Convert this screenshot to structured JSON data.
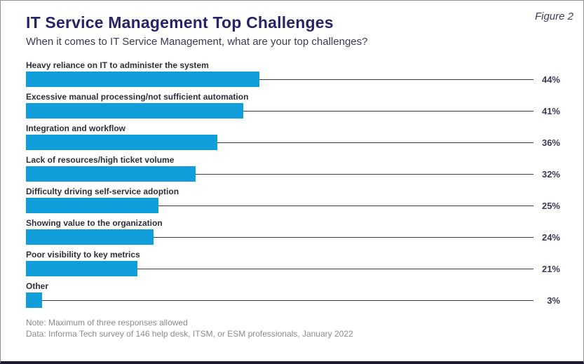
{
  "figure_label": "Figure 2",
  "chart_data": {
    "type": "bar",
    "orientation": "horizontal",
    "title": "IT Service Management Top Challenges",
    "subtitle": "When it comes to IT Service Management, what are your top challenges?",
    "categories": [
      "Heavy reliance on IT to administer the system",
      "Excessive manual processing/not sufficient automation",
      "Integration and workflow",
      "Lack of resources/high ticket volume",
      "Difficulty driving self-service adoption",
      "Showing value to the organization",
      "Poor visibility to key metrics",
      "Other"
    ],
    "values": [
      44,
      41,
      36,
      32,
      25,
      24,
      21,
      3
    ],
    "value_suffix": "%",
    "xlim": [
      0,
      44
    ],
    "grid": false,
    "legend": "none",
    "data_labels_position": "right-aligned with leader lines",
    "colors": {
      "bar": "#0f9ed9",
      "title": "#27246a",
      "leader_line": "#3a3a46"
    }
  },
  "footer": {
    "note": "Note: Maximum of three responses allowed",
    "source": "Data: Informa Tech survey of 146 help desk, ITSM, or ESM professionals, January 2022"
  }
}
